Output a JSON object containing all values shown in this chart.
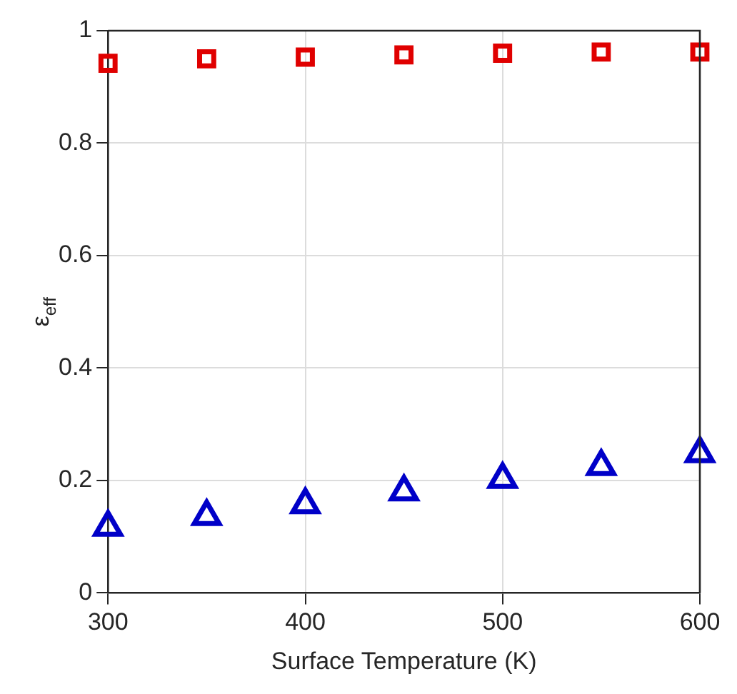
{
  "chart_data": {
    "type": "scatter",
    "xlabel": "Surface Temperature (K)",
    "ylabel": "ε$_{eff}$",
    "x": [
      300,
      350,
      400,
      450,
      500,
      550,
      600
    ],
    "series": [
      {
        "color": "#e00000",
        "marker": "square",
        "values": [
          0.942,
          0.95,
          0.953,
          0.957,
          0.96,
          0.962,
          0.962
        ]
      },
      {
        "color": "#0000c8",
        "marker": "triangle",
        "values": [
          0.117,
          0.136,
          0.157,
          0.18,
          0.202,
          0.225,
          0.248
        ]
      }
    ],
    "xlim": [
      300,
      600
    ],
    "xticks": [
      300,
      400,
      500,
      600
    ],
    "ylim": [
      0,
      1
    ],
    "yticks": [
      0,
      0.2,
      0.4,
      0.6,
      0.8,
      1
    ],
    "grid": true,
    "legend": false
  }
}
